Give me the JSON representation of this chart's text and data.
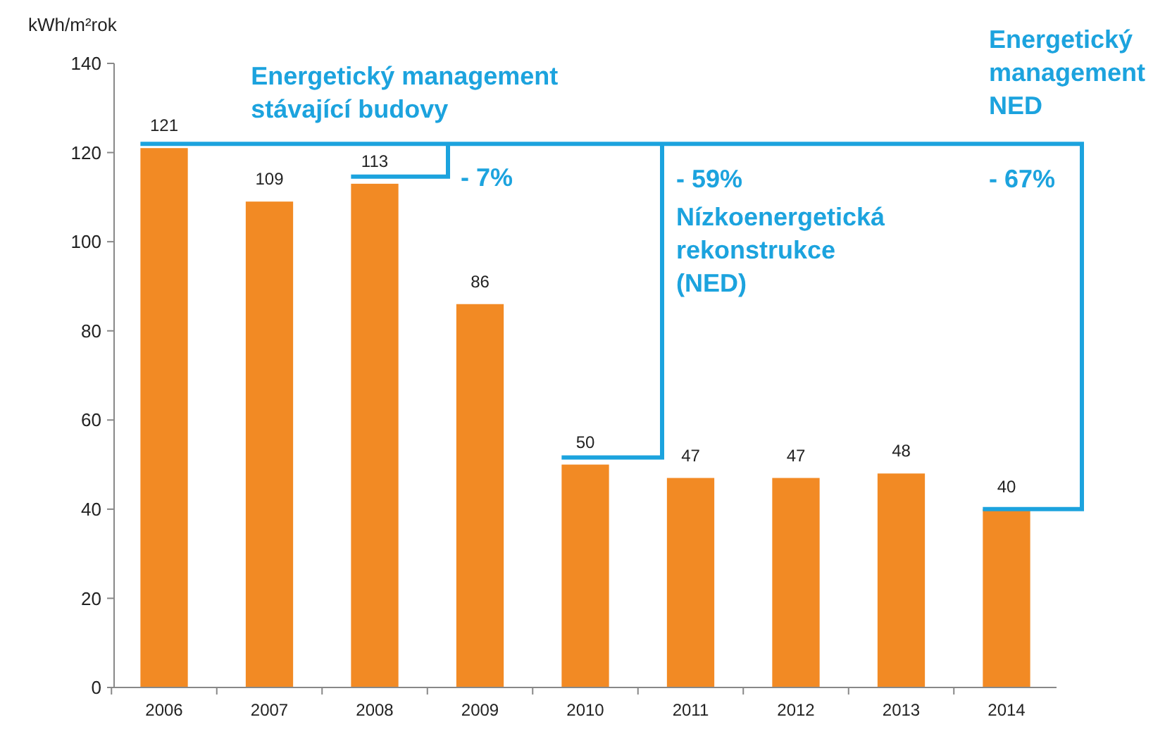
{
  "chart_data": {
    "type": "bar",
    "ylabel": "kWh/m²rok",
    "categories": [
      "2006",
      "2007",
      "2008",
      "2009",
      "2010",
      "2011",
      "2012",
      "2013",
      "2014"
    ],
    "values": [
      121,
      109,
      113,
      86,
      50,
      47,
      47,
      48,
      40
    ],
    "color": "#f28a24",
    "ylim": [
      0,
      140
    ],
    "yticks": [
      0,
      20,
      40,
      60,
      80,
      100,
      120,
      140
    ],
    "grid": false,
    "data_labels": true,
    "annotations": [
      "Energetický management\nstávající budovy",
      "- 7%",
      "- 59%",
      "Nízkoenergetická\nrekonstrukce\n(NED)",
      "Energetický\nmanagement\nNED",
      "- 67%"
    ]
  }
}
